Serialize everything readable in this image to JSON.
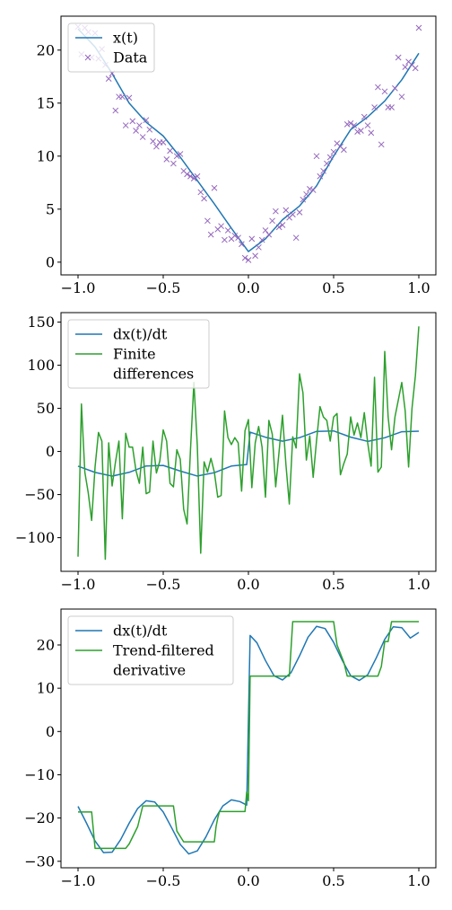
{
  "chart_data": [
    {
      "type": "scatter",
      "xlim": [
        -1.1,
        1.1
      ],
      "ylim": [
        -1.2,
        23.2
      ],
      "xticks": [
        "−1.0",
        "−0.5",
        "0.0",
        "0.5",
        "1.0"
      ],
      "xtick_values": [
        -1.0,
        -0.5,
        0.0,
        0.5,
        1.0
      ],
      "yticks": [
        "0",
        "5",
        "10",
        "15",
        "20"
      ],
      "ytick_values": [
        0,
        5,
        10,
        15,
        20
      ],
      "grid": false,
      "legend_position": "upper-left",
      "series": [
        {
          "name": "x(t)",
          "kind": "line",
          "color": "#1f77b4",
          "x": [
            -1.0,
            -0.9,
            -0.8,
            -0.7,
            -0.6,
            -0.5,
            -0.4,
            -0.3,
            -0.2,
            -0.1,
            0.0,
            0.1,
            0.2,
            0.3,
            0.4,
            0.5,
            0.6,
            0.7,
            0.8,
            0.9,
            1.0
          ],
          "y": [
            22.0,
            20.3,
            17.8,
            15.0,
            13.2,
            11.9,
            9.9,
            7.7,
            5.5,
            3.2,
            1.0,
            2.2,
            4.0,
            5.3,
            7.2,
            10.0,
            12.5,
            13.7,
            15.2,
            17.2,
            19.7
          ]
        },
        {
          "name": "Data",
          "kind": "marker",
          "color": "#9467bd",
          "x": [
            -1.0,
            -0.98,
            -0.96,
            -0.94,
            -0.92,
            -0.9,
            -0.88,
            -0.86,
            -0.84,
            -0.82,
            -0.8,
            -0.78,
            -0.76,
            -0.74,
            -0.72,
            -0.7,
            -0.68,
            -0.66,
            -0.64,
            -0.62,
            -0.6,
            -0.58,
            -0.56,
            -0.54,
            -0.52,
            -0.5,
            -0.48,
            -0.46,
            -0.44,
            -0.42,
            -0.4,
            -0.38,
            -0.36,
            -0.34,
            -0.32,
            -0.3,
            -0.28,
            -0.26,
            -0.24,
            -0.22,
            -0.2,
            -0.18,
            -0.16,
            -0.14,
            -0.12,
            -0.1,
            -0.08,
            -0.06,
            -0.04,
            -0.02,
            0.0,
            0.02,
            0.04,
            0.06,
            0.08,
            0.1,
            0.12,
            0.14,
            0.16,
            0.18,
            0.2,
            0.22,
            0.24,
            0.26,
            0.28,
            0.3,
            0.32,
            0.34,
            0.36,
            0.38,
            0.4,
            0.42,
            0.44,
            0.46,
            0.48,
            0.5,
            0.52,
            0.54,
            0.56,
            0.58,
            0.6,
            0.62,
            0.64,
            0.66,
            0.68,
            0.7,
            0.72,
            0.74,
            0.76,
            0.78,
            0.8,
            0.82,
            0.84,
            0.86,
            0.88,
            0.9,
            0.92,
            0.94,
            0.96,
            0.98,
            1.0
          ],
          "y": [
            22.2,
            19.6,
            22.1,
            21.7,
            19.3,
            21.6,
            19.2,
            20.1,
            18.6,
            17.3,
            17.8,
            14.3,
            15.6,
            15.6,
            12.9,
            15.5,
            13.3,
            12.4,
            12.9,
            11.8,
            13.4,
            12.5,
            11.4,
            10.9,
            11.3,
            11.3,
            9.7,
            10.5,
            9.3,
            10.0,
            10.2,
            8.6,
            8.3,
            8.1,
            7.9,
            8.1,
            6.6,
            6.0,
            3.9,
            2.6,
            7.0,
            3.1,
            3.4,
            2.1,
            3.0,
            2.2,
            2.5,
            2.3,
            1.7,
            0.4,
            0.2,
            2.2,
            0.6,
            1.4,
            2.1,
            3.0,
            2.6,
            3.9,
            4.8,
            3.3,
            3.5,
            4.9,
            4.2,
            4.5,
            2.3,
            4.7,
            5.9,
            6.4,
            6.9,
            6.8,
            10.0,
            8.1,
            8.6,
            9.3,
            9.9,
            10.4,
            11.2,
            10.9,
            10.6,
            13.0,
            13.1,
            12.9,
            12.3,
            12.4,
            13.7,
            12.9,
            12.2,
            14.6,
            16.5,
            11.1,
            16.1,
            14.6,
            14.6,
            16.4,
            19.3,
            15.6,
            18.4,
            18.9,
            18.6,
            18.3,
            22.1
          ]
        }
      ]
    },
    {
      "type": "line",
      "xlim": [
        -1.1,
        1.1
      ],
      "ylim": [
        -139,
        161
      ],
      "xticks": [
        "−1.0",
        "−0.5",
        "0.0",
        "0.5",
        "1.0"
      ],
      "xtick_values": [
        -1.0,
        -0.5,
        0.0,
        0.5,
        1.0
      ],
      "yticks": [
        "−100",
        "−50",
        "0",
        "50",
        "100",
        "150"
      ],
      "ytick_values": [
        -100,
        -50,
        0,
        50,
        100,
        150
      ],
      "grid": false,
      "legend_position": "upper-left",
      "series": [
        {
          "name": "dx(t)/dt",
          "color": "#1f77b4",
          "x": [
            -1.0,
            -0.9,
            -0.8,
            -0.7,
            -0.6,
            -0.5,
            -0.4,
            -0.3,
            -0.2,
            -0.1,
            -0.01,
            0.01,
            0.1,
            0.2,
            0.3,
            0.4,
            0.5,
            0.6,
            0.7,
            0.8,
            0.9,
            1.0
          ],
          "y": [
            -17.1,
            -24.3,
            -28.6,
            -24.2,
            -16.8,
            -16.2,
            -22.7,
            -28.5,
            -24.6,
            -16.9,
            -15.2,
            22.4,
            16.5,
            11.9,
            16.0,
            23.3,
            23.8,
            16.6,
            11.7,
            15.9,
            22.9,
            23.5
          ]
        },
        {
          "name": "Finite differences",
          "name_lines": [
            "Finite",
            "differences"
          ],
          "color": "#2ca02c",
          "x": [
            -1.0,
            -0.98,
            -0.96,
            -0.94,
            -0.92,
            -0.9,
            -0.88,
            -0.86,
            -0.84,
            -0.82,
            -0.8,
            -0.78,
            -0.76,
            -0.74,
            -0.72,
            -0.7,
            -0.68,
            -0.66,
            -0.64,
            -0.62,
            -0.6,
            -0.58,
            -0.56,
            -0.54,
            -0.52,
            -0.5,
            -0.48,
            -0.46,
            -0.44,
            -0.42,
            -0.4,
            -0.38,
            -0.36,
            -0.34,
            -0.32,
            -0.3,
            -0.28,
            -0.26,
            -0.24,
            -0.22,
            -0.2,
            -0.18,
            -0.16,
            -0.14,
            -0.12,
            -0.1,
            -0.08,
            -0.06,
            -0.04,
            -0.02,
            0.0,
            0.02,
            0.04,
            0.06,
            0.08,
            0.1,
            0.12,
            0.14,
            0.16,
            0.18,
            0.2,
            0.22,
            0.24,
            0.26,
            0.28,
            0.3,
            0.32,
            0.34,
            0.36,
            0.38,
            0.4,
            0.42,
            0.44,
            0.46,
            0.48,
            0.5,
            0.52,
            0.54,
            0.56,
            0.58,
            0.6,
            0.62,
            0.64,
            0.66,
            0.68,
            0.7,
            0.72,
            0.74,
            0.76,
            0.78,
            0.8,
            0.82,
            0.84,
            0.86,
            0.88,
            0.9,
            0.92,
            0.94,
            0.96,
            0.98,
            1.0
          ],
          "y": [
            -122,
            55,
            -24,
            -48,
            -80,
            -18,
            22,
            12,
            -125,
            10,
            -40,
            -12,
            12,
            -78,
            21,
            5,
            5,
            -22,
            -37,
            5,
            -49,
            -47,
            12,
            -25,
            -11,
            25,
            12,
            -37,
            -41,
            2,
            -9,
            -67,
            -84,
            2,
            80,
            7,
            -118,
            -12,
            -24,
            -8,
            -24,
            -53,
            -51,
            47,
            16,
            8,
            16,
            10,
            -46,
            24,
            37,
            -42,
            10,
            29,
            5,
            -53,
            36,
            20,
            -41,
            0,
            42,
            -15,
            -61,
            17,
            4,
            90,
            68,
            -10,
            18,
            -30,
            13,
            52,
            40,
            36,
            12,
            40,
            44,
            -27,
            -14,
            -3,
            40,
            19,
            33,
            16,
            45,
            10,
            -17,
            86,
            -24,
            -18,
            116,
            40,
            2,
            40,
            60,
            80,
            47,
            -18,
            50,
            88,
            145
          ]
        }
      ]
    },
    {
      "type": "line",
      "xlim": [
        -1.1,
        1.1
      ],
      "ylim": [
        -31.5,
        28.3
      ],
      "xticks": [
        "−1.0",
        "−0.5",
        "0.0",
        "0.5",
        "1.0"
      ],
      "xtick_values": [
        -1.0,
        -0.5,
        0.0,
        0.5,
        1.0
      ],
      "yticks": [
        "−30",
        "−20",
        "−10",
        "0",
        "10",
        "20"
      ],
      "ytick_values": [
        -30,
        -20,
        -10,
        0,
        10,
        20
      ],
      "grid": false,
      "legend_position": "upper-left",
      "series": [
        {
          "name": "dx(t)/dt",
          "color": "#1f77b4",
          "x": [
            -1.0,
            -0.95,
            -0.9,
            -0.85,
            -0.8,
            -0.75,
            -0.7,
            -0.65,
            -0.6,
            -0.55,
            -0.5,
            -0.45,
            -0.4,
            -0.35,
            -0.3,
            -0.25,
            -0.2,
            -0.15,
            -0.1,
            -0.05,
            -0.01,
            0.01,
            0.05,
            0.1,
            0.15,
            0.2,
            0.25,
            0.3,
            0.35,
            0.4,
            0.45,
            0.5,
            0.55,
            0.6,
            0.65,
            0.7,
            0.75,
            0.8,
            0.85,
            0.9,
            0.95,
            1.0
          ],
          "y": [
            -17.3,
            -21.2,
            -25.3,
            -28.0,
            -27.9,
            -25.0,
            -21.2,
            -17.8,
            -16.0,
            -16.3,
            -18.6,
            -22.3,
            -26.1,
            -28.3,
            -27.6,
            -24.4,
            -20.4,
            -17.2,
            -15.8,
            -16.2,
            -17.0,
            22.2,
            20.5,
            16.4,
            12.9,
            11.9,
            13.6,
            17.5,
            21.8,
            24.3,
            23.8,
            20.6,
            16.5,
            12.9,
            11.8,
            13.1,
            17.0,
            21.3,
            24.2,
            24.0,
            21.6,
            22.9
          ]
        },
        {
          "name": "Trend-filtered derivative",
          "name_lines": [
            "Trend-filtered",
            "derivative"
          ],
          "color": "#2ca02c",
          "x": [
            -1.0,
            -0.92,
            -0.9,
            -0.72,
            -0.7,
            -0.65,
            -0.62,
            -0.44,
            -0.42,
            -0.38,
            -0.37,
            -0.2,
            -0.19,
            -0.18,
            -0.17,
            -0.02,
            -0.01,
            0.0,
            0.01,
            0.24,
            0.26,
            0.5,
            0.52,
            0.56,
            0.58,
            0.76,
            0.78,
            0.8,
            0.82,
            0.84,
            0.98,
            1.0
          ],
          "y": [
            -18.6,
            -18.6,
            -27.0,
            -27.0,
            -26.0,
            -22.0,
            -17.2,
            -17.2,
            -23.0,
            -25.5,
            -25.5,
            -25.5,
            -22.0,
            -20.0,
            -18.5,
            -18.5,
            -14.0,
            -16.0,
            12.8,
            12.8,
            25.4,
            25.4,
            20.0,
            16.0,
            12.8,
            12.8,
            15.0,
            20.8,
            20.8,
            25.4,
            25.4,
            25.4
          ]
        }
      ]
    }
  ]
}
